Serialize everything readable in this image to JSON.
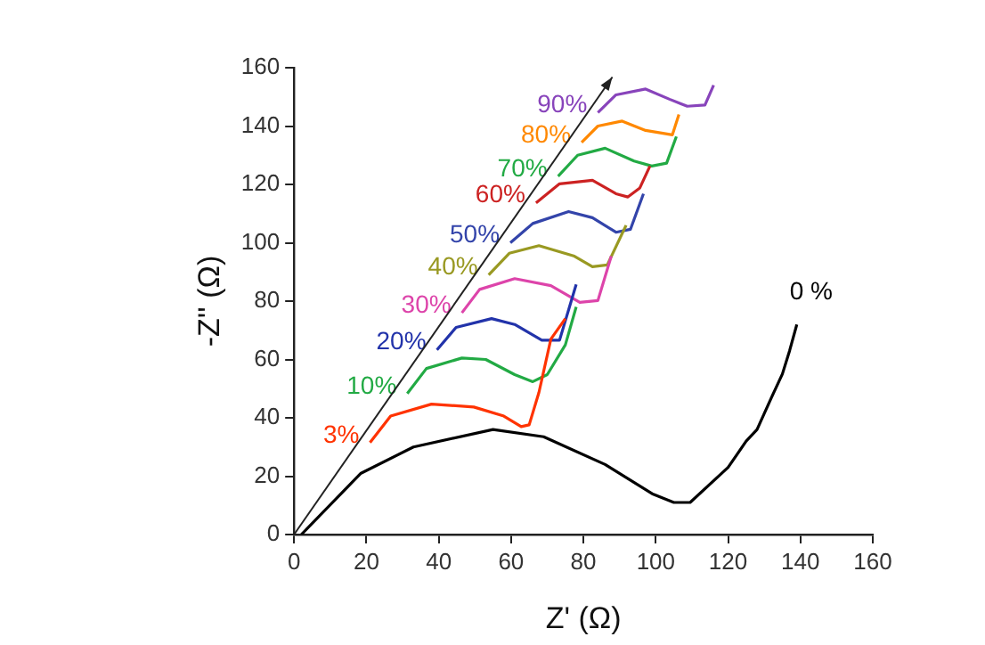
{
  "chart_data": {
    "type": "line",
    "xlabel": "Z' (Ω)",
    "ylabel": "-Z'' (Ω)",
    "xlim": [
      0,
      160
    ],
    "ylim": [
      0,
      160
    ],
    "xticks": [
      0,
      20,
      40,
      60,
      80,
      100,
      120,
      140,
      160
    ],
    "yticks": [
      0,
      20,
      40,
      60,
      80,
      100,
      120,
      140,
      160
    ],
    "grid": false,
    "legend": false,
    "marker": "none",
    "line_style": "solid",
    "series": [
      {
        "name": "3%",
        "color": "#ff3300",
        "x": [
          21,
          26.7,
          38,
          49.7,
          58,
          62.8,
          65,
          67.7,
          71,
          75
        ],
        "values": [
          31.5,
          40.6,
          44.7,
          43.7,
          40.6,
          37,
          37.6,
          48.7,
          67,
          74
        ]
      },
      {
        "name": "10%",
        "color": "#22aa44",
        "x": [
          31.3,
          36.6,
          46.4,
          53,
          61,
          66,
          70,
          75,
          78
        ],
        "values": [
          48.3,
          56.9,
          60.5,
          60,
          54.8,
          52.4,
          54.8,
          65,
          78
        ]
      },
      {
        "name": "20%",
        "color": "#2233aa",
        "x": [
          39.5,
          44.8,
          54.6,
          61,
          68.5,
          73.4,
          78
        ],
        "values": [
          63.3,
          71,
          74,
          72,
          66.6,
          66.6,
          85.7
        ]
      },
      {
        "name": "30%",
        "color": "#dd44aa",
        "x": [
          46.4,
          51.3,
          61,
          71,
          79,
          84,
          87.7
        ],
        "values": [
          76,
          84,
          87.7,
          85.3,
          79.6,
          80.2,
          95.4
        ]
      },
      {
        "name": "40%",
        "color": "#999922",
        "x": [
          53.8,
          59.5,
          67.7,
          77.5,
          82.5,
          86.6,
          91.8
        ],
        "values": [
          89,
          96.4,
          99,
          95.4,
          91.8,
          92.4,
          106
        ]
      },
      {
        "name": "50%",
        "color": "#3344aa",
        "x": [
          59.8,
          66,
          75.9,
          82.5,
          89,
          93,
          96.6
        ],
        "values": [
          100,
          106.6,
          110.7,
          108.6,
          103.6,
          104.6,
          116.8
        ]
      },
      {
        "name": "60%",
        "color": "#cc2222",
        "x": [
          66.9,
          73.4,
          82.5,
          89,
          92.3,
          95.6,
          98.4
        ],
        "values": [
          113.7,
          120.2,
          121.4,
          116.8,
          115.7,
          118.8,
          126.3
        ]
      },
      {
        "name": "70%",
        "color": "#22aa44",
        "x": [
          73,
          78.4,
          86,
          94,
          98.9,
          103,
          105.7
        ],
        "values": [
          122.8,
          130,
          132.4,
          128,
          126.3,
          127.3,
          136.4
        ]
      },
      {
        "name": "80%",
        "color": "#ff8800",
        "x": [
          79.5,
          84,
          90.7,
          97.2,
          104.6,
          106.4
        ],
        "values": [
          134.4,
          140,
          141.7,
          138.5,
          137,
          144
        ]
      },
      {
        "name": "90%",
        "color": "#8844bb",
        "x": [
          84,
          89,
          97.2,
          103.8,
          108.7,
          113.6,
          116
        ],
        "values": [
          144.6,
          150.7,
          152.7,
          149.2,
          146.8,
          147.2,
          154
        ]
      },
      {
        "name": "0 %",
        "color": "#000000",
        "x": [
          2,
          18.5,
          33,
          55,
          69,
          86,
          99,
          105,
          109.5,
          120,
          125,
          128,
          132,
          135,
          137,
          139
        ],
        "values": [
          0,
          21,
          30,
          36,
          33.5,
          24,
          14,
          11,
          11,
          23,
          32,
          36,
          47,
          55,
          63,
          72
        ]
      }
    ]
  }
}
